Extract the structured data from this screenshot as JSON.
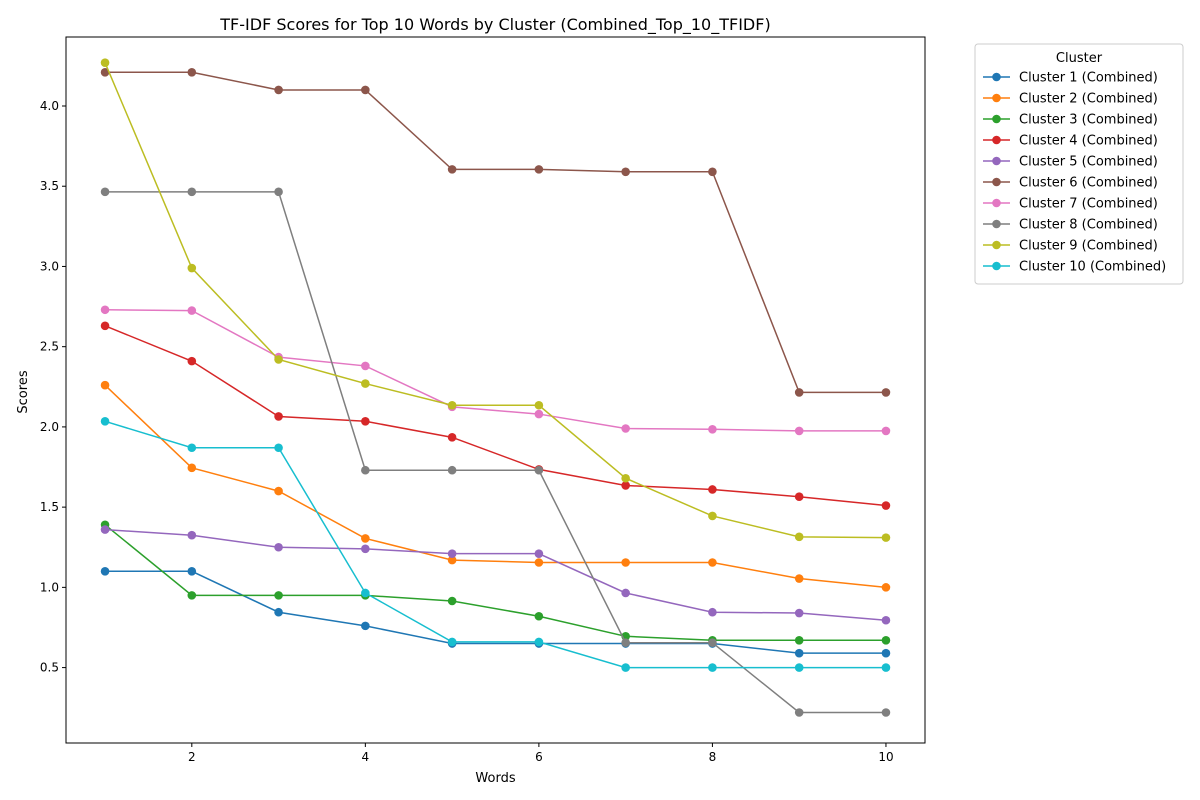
{
  "chart_data": {
    "type": "line",
    "title": "TF-IDF Scores for Top 10 Words by Cluster (Combined_Top_10_TFIDF)",
    "xlabel": "Words",
    "ylabel": "Scores",
    "xlim": [
      0.55,
      10.45
    ],
    "ylim": [
      0.03,
      4.43
    ],
    "xticks": [
      2,
      4,
      6,
      8,
      10
    ],
    "yticks": [
      0.5,
      1.0,
      1.5,
      2.0,
      2.5,
      3.0,
      3.5,
      4.0
    ],
    "xtick_labels": [
      "2",
      "4",
      "6",
      "8",
      "10"
    ],
    "ytick_labels": [
      "0.5",
      "1.0",
      "1.5",
      "2.0",
      "2.5",
      "3.0",
      "3.5",
      "4.0"
    ],
    "grid": false,
    "legend": {
      "title": "Cluster",
      "placement": "outside-right-top"
    },
    "x": [
      1,
      2,
      3,
      4,
      5,
      6,
      7,
      8,
      9,
      10
    ],
    "series": [
      {
        "name": "Cluster 1 (Combined)",
        "color": "#1f77b4",
        "values": [
          1.1,
          1.1,
          0.845,
          0.76,
          0.65,
          0.65,
          0.65,
          0.65,
          0.59,
          0.59
        ]
      },
      {
        "name": "Cluster 2 (Combined)",
        "color": "#ff7f0e",
        "values": [
          2.26,
          1.745,
          1.6,
          1.305,
          1.17,
          1.155,
          1.155,
          1.155,
          1.055,
          1.0
        ]
      },
      {
        "name": "Cluster 3 (Combined)",
        "color": "#2ca02c",
        "values": [
          1.39,
          0.95,
          0.95,
          0.95,
          0.915,
          0.82,
          0.695,
          0.67,
          0.67,
          0.67
        ]
      },
      {
        "name": "Cluster 4 (Combined)",
        "color": "#d62728",
        "values": [
          2.63,
          2.41,
          2.065,
          2.035,
          1.935,
          1.735,
          1.635,
          1.61,
          1.565,
          1.51
        ]
      },
      {
        "name": "Cluster 5 (Combined)",
        "color": "#9467bd",
        "values": [
          1.36,
          1.325,
          1.25,
          1.24,
          1.21,
          1.21,
          0.965,
          0.845,
          0.84,
          0.795
        ]
      },
      {
        "name": "Cluster 6 (Combined)",
        "color": "#8c564b",
        "values": [
          4.21,
          4.21,
          4.1,
          4.1,
          3.605,
          3.605,
          3.59,
          3.59,
          2.215,
          2.215
        ]
      },
      {
        "name": "Cluster 7 (Combined)",
        "color": "#e377c2",
        "values": [
          2.73,
          2.725,
          2.435,
          2.38,
          2.125,
          2.08,
          1.99,
          1.985,
          1.975,
          1.975
        ]
      },
      {
        "name": "Cluster 8 (Combined)",
        "color": "#7f7f7f",
        "values": [
          3.465,
          3.465,
          3.465,
          1.73,
          1.73,
          1.73,
          0.655,
          0.655,
          0.22,
          0.22
        ]
      },
      {
        "name": "Cluster 9 (Combined)",
        "color": "#bcbd22",
        "values": [
          4.27,
          2.99,
          2.42,
          2.27,
          2.135,
          2.135,
          1.68,
          1.445,
          1.315,
          1.31
        ]
      },
      {
        "name": "Cluster 10 (Combined)",
        "color": "#17becf",
        "values": [
          2.035,
          1.87,
          1.87,
          0.965,
          0.66,
          0.66,
          0.5,
          0.5,
          0.5,
          0.5
        ]
      }
    ]
  }
}
